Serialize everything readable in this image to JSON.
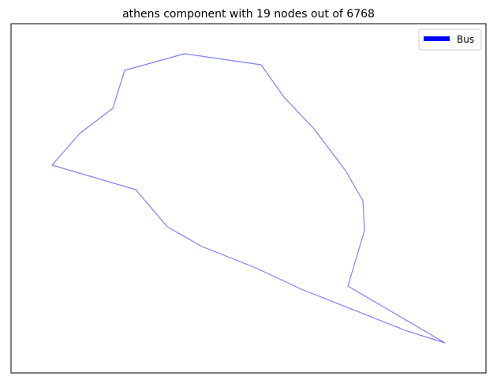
{
  "title": "athens component with 19 nodes out of 6768",
  "legend": {
    "entries": [
      {
        "label": "Bus",
        "color": "#0000ff"
      }
    ],
    "placement": "top-right"
  },
  "colors": {
    "edge": "#0000ff",
    "axes_frame": "#000000",
    "background": "#ffffff"
  },
  "network": {
    "nodes_drawn": 19,
    "total_nodes": 6768,
    "edge_color": "#0000ff",
    "edge_opacity": 0.5
  }
}
